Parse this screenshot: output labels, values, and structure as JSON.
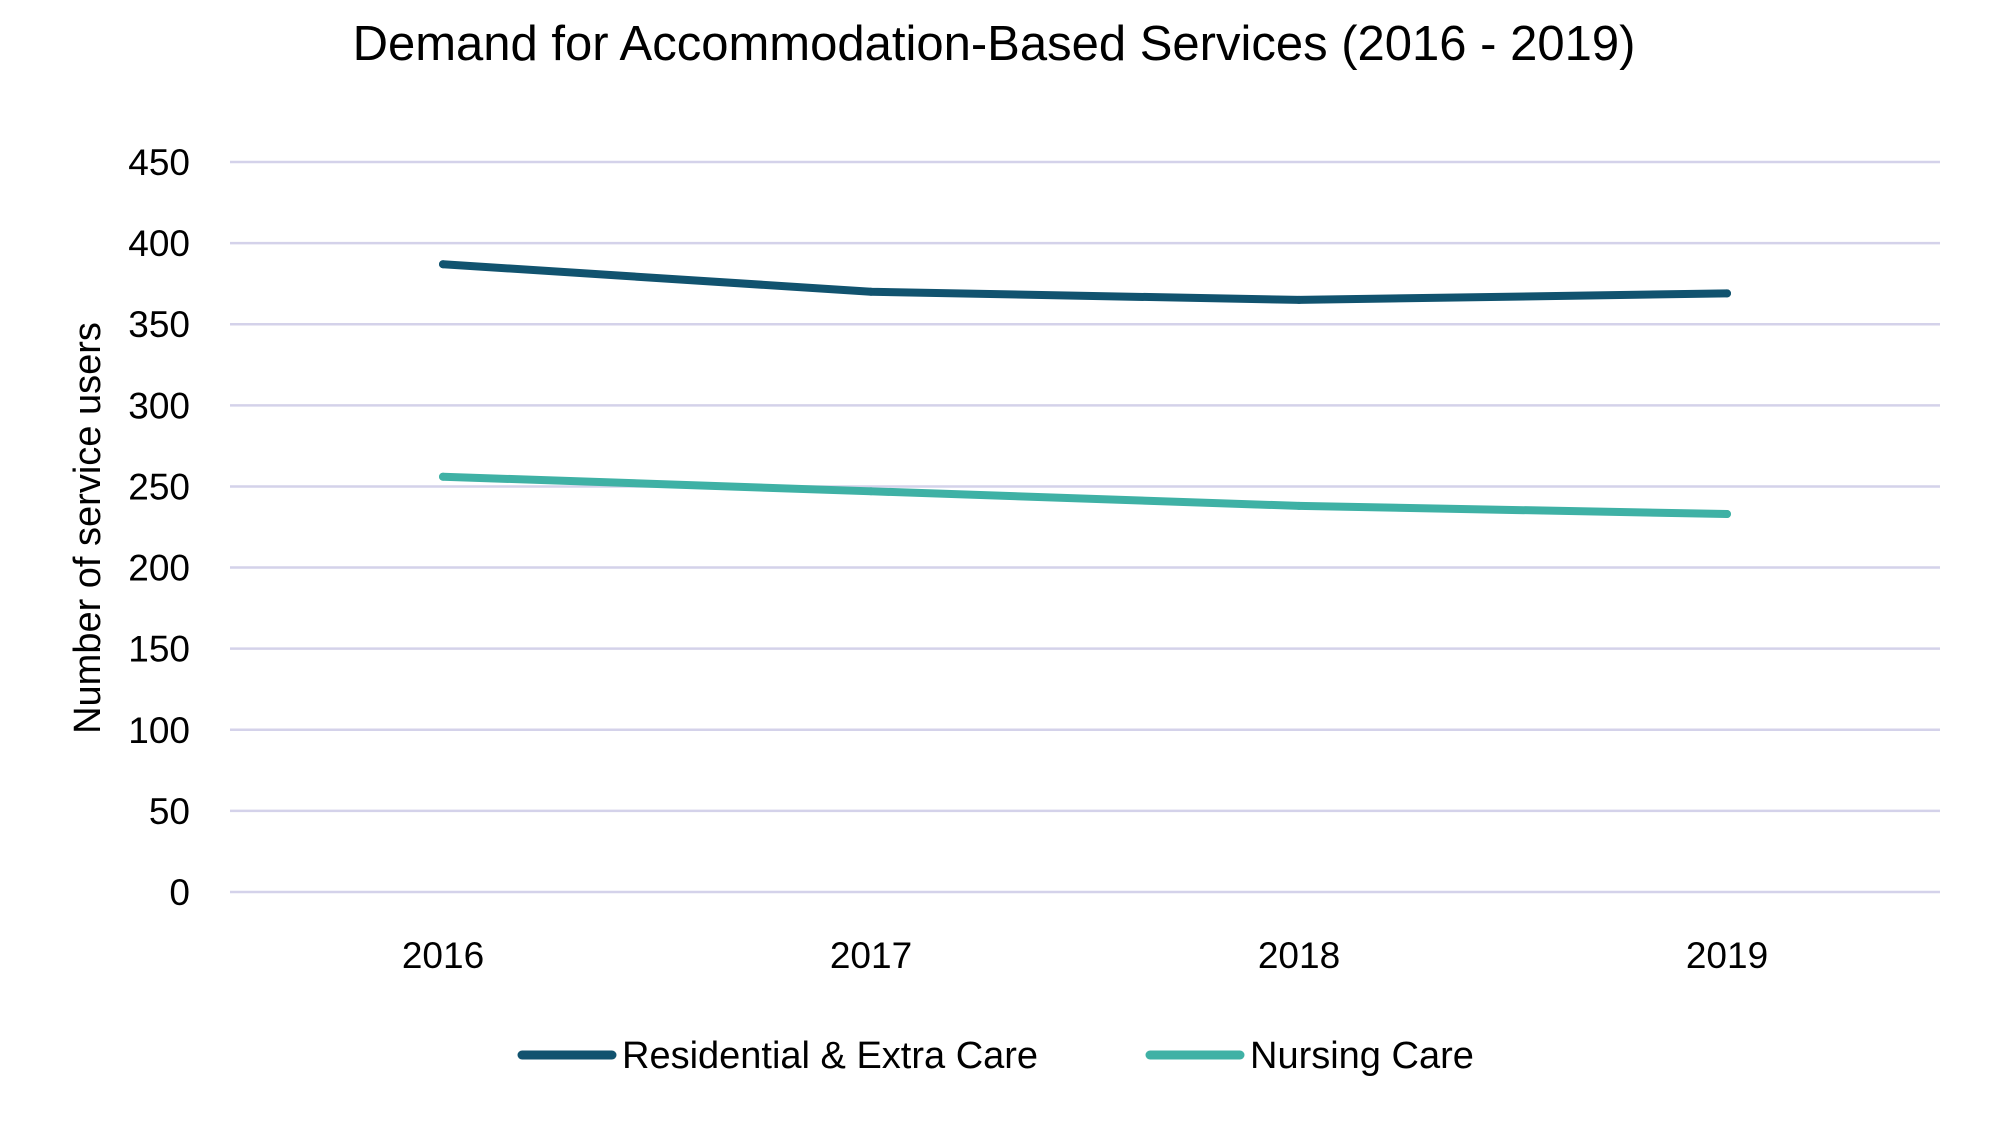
{
  "chart_data": {
    "type": "line",
    "title": "Demand for Accommodation-Based Services (2016 - 2019)",
    "xlabel": "",
    "ylabel": "Number of service users",
    "categories": [
      "2016",
      "2017",
      "2018",
      "2019"
    ],
    "ylim": [
      0,
      450
    ],
    "yticks": [
      0,
      50,
      100,
      150,
      200,
      250,
      300,
      350,
      400,
      450
    ],
    "grid": "horizontal",
    "legend_position": "bottom",
    "series": [
      {
        "name": "Residential & Extra Care",
        "color": "#11536f",
        "values": [
          387,
          370,
          365,
          369
        ]
      },
      {
        "name": "Nursing Care",
        "color": "#3fb1a5",
        "values": [
          256,
          247,
          238,
          233
        ]
      }
    ]
  }
}
